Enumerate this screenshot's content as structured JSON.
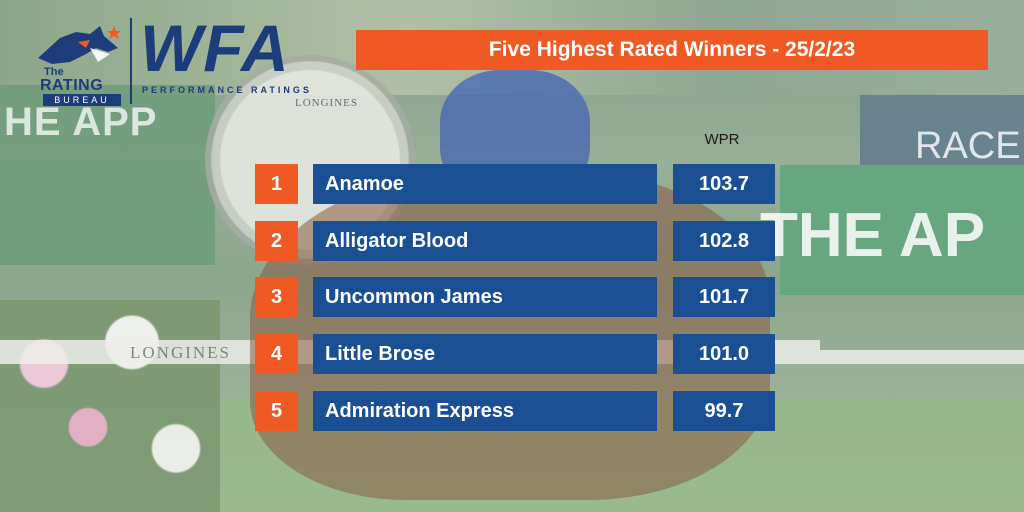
{
  "background": {
    "left_board_text": "HE APP",
    "right_board_text": "THE AP",
    "right_top_text": "RACE",
    "clock_text": "LONGINES",
    "rail_text": "LONGINES"
  },
  "logo": {
    "small_text": "The",
    "rating_text": "RATING",
    "bureau_text": "BUREAU",
    "title": "WFA",
    "subtitle": "PERFORMANCE RATINGS"
  },
  "header": {
    "title": "Five Highest Rated Winners - 25/2/23"
  },
  "table": {
    "value_header": "WPR",
    "rows": [
      {
        "rank": "1",
        "name": "Anamoe",
        "wpr": "103.7"
      },
      {
        "rank": "2",
        "name": "Alligator Blood",
        "wpr": "102.8"
      },
      {
        "rank": "3",
        "name": "Uncommon James",
        "wpr": "101.7"
      },
      {
        "rank": "4",
        "name": "Little Brose",
        "wpr": "101.0"
      },
      {
        "rank": "5",
        "name": "Admiration Express",
        "wpr": "99.7"
      }
    ]
  },
  "colors": {
    "accent_orange": "#ef5a24",
    "brand_blue": "#1b4f93",
    "logo_navy": "#1d3c7a"
  }
}
